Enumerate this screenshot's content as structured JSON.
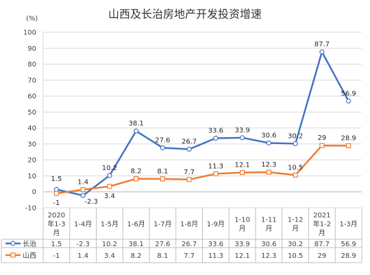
{
  "chart_data": {
    "type": "line",
    "title": "山西及长治房地产开发投资增速",
    "ylabel": "(%)",
    "ylim": [
      -10,
      100
    ],
    "yticks": [
      -10,
      0,
      10,
      20,
      30,
      40,
      50,
      60,
      70,
      80,
      90,
      100
    ],
    "grid": true,
    "legend": "bottom-table",
    "categories": [
      [
        "2020",
        "年1-3",
        "月"
      ],
      [
        "1-4月"
      ],
      [
        "1-5月"
      ],
      [
        "1-6月"
      ],
      [
        "1-7月"
      ],
      [
        "1-8月"
      ],
      [
        "1-9月"
      ],
      [
        "1-10",
        "月"
      ],
      [
        "1-11",
        "月"
      ],
      [
        "1-12",
        "月"
      ],
      [
        "2021",
        "年1-2",
        "月"
      ],
      [
        "1-3月"
      ]
    ],
    "series": [
      {
        "name": "长治",
        "color": "#4472C4",
        "marker": "circle",
        "values": [
          1.5,
          -2.3,
          10.2,
          38.1,
          27.6,
          26.7,
          33.6,
          33.9,
          30.6,
          30.2,
          87.7,
          56.9
        ]
      },
      {
        "name": "山西",
        "color": "#ED7D31",
        "marker": "square",
        "values": [
          -1,
          1.4,
          3.4,
          8.2,
          8.1,
          7.7,
          11.3,
          12.1,
          12.3,
          10.5,
          29,
          28.9
        ]
      }
    ]
  }
}
